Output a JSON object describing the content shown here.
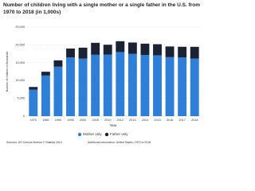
{
  "chart_data": {
    "type": "stacked-bar",
    "title": "Number of children living with a single mother or a single father in the U.S. from 1970 to 2018 (in 1,000s)",
    "x_label": "Year",
    "y_label": "Number of children in thousands",
    "categories": [
      "1970",
      "1980",
      "1990",
      "1995",
      "2000",
      "2005",
      "2010",
      "2012",
      "2013",
      "2014",
      "2015",
      "2016",
      "2017",
      "2018"
    ],
    "series": [
      {
        "name": "Mother only",
        "color": "#2f7ed8",
        "values": [
          7452,
          11406,
          13874,
          16477,
          16162,
          17225,
          17283,
          17991,
          17508,
          17187,
          17087,
          16554,
          16455,
          16180
        ]
      },
      {
        "name": "Father only",
        "color": "#1b2233",
        "values": [
          748,
          1060,
          1790,
          2496,
          3058,
          3355,
          2763,
          3038,
          3156,
          3157,
          3104,
          3005,
          3015,
          3280
        ]
      }
    ],
    "ylim": [
      0,
      25000
    ],
    "yticks": [
      0,
      {
        "value": 5000,
        "label": "5,000"
      },
      {
        "value": 10000,
        "label": "10,000"
      },
      {
        "value": 15000,
        "label": "15,000"
      },
      {
        "value": 20000,
        "label": "20,000"
      },
      {
        "value": 25000,
        "label": "25,000"
      }
    ],
    "grid": true,
    "legend": "bottom",
    "source": "Sources: US Census Bureau © Statista 2019",
    "additional_info": "Additional Information: United States; 1970 to 2018"
  }
}
